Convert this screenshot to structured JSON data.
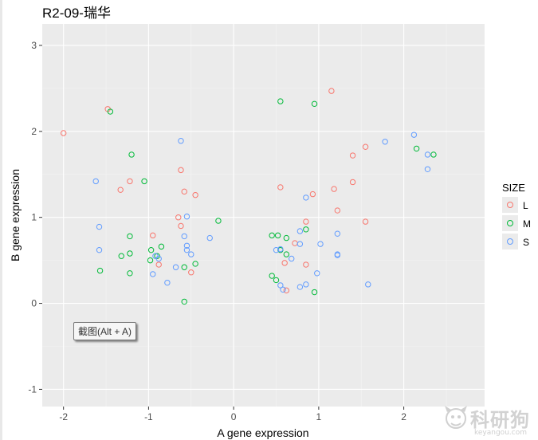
{
  "chart_data": {
    "type": "scatter",
    "title": "R2-09-瑞华",
    "xlabel": "A gene expression",
    "ylabel": "B gene expression",
    "xlim": [
      -2.25,
      2.95
    ],
    "ylim": [
      -1.2,
      3.25
    ],
    "xticks": [
      -2,
      -1,
      0,
      1,
      2
    ],
    "yticks": [
      -1,
      0,
      1,
      2,
      3
    ],
    "grid": true,
    "legend_title": "SIZE",
    "legend_position": "right",
    "series": [
      {
        "name": "L",
        "color": "#F8766D",
        "points": [
          [
            -2.0,
            1.98
          ],
          [
            -1.48,
            2.26
          ],
          [
            -1.33,
            1.32
          ],
          [
            -1.22,
            1.42
          ],
          [
            -0.95,
            0.79
          ],
          [
            -0.62,
            1.55
          ],
          [
            -0.58,
            1.3
          ],
          [
            -0.45,
            1.26
          ],
          [
            -0.65,
            1.0
          ],
          [
            -0.62,
            0.9
          ],
          [
            -0.88,
            0.45
          ],
          [
            -0.5,
            0.36
          ],
          [
            0.55,
            1.35
          ],
          [
            0.93,
            1.27
          ],
          [
            0.85,
            0.95
          ],
          [
            0.72,
            0.7
          ],
          [
            0.6,
            0.47
          ],
          [
            0.85,
            0.45
          ],
          [
            0.62,
            0.15
          ],
          [
            1.15,
            2.47
          ],
          [
            1.18,
            1.33
          ],
          [
            1.22,
            1.08
          ],
          [
            1.4,
            1.72
          ],
          [
            1.4,
            1.41
          ],
          [
            1.55,
            1.82
          ],
          [
            1.55,
            0.95
          ]
        ]
      },
      {
        "name": "M",
        "color": "#00BA38",
        "points": [
          [
            -1.45,
            2.23
          ],
          [
            -1.2,
            1.73
          ],
          [
            -1.05,
            1.42
          ],
          [
            -1.22,
            0.78
          ],
          [
            -1.22,
            0.58
          ],
          [
            -1.32,
            0.55
          ],
          [
            -1.22,
            0.35
          ],
          [
            -1.57,
            0.38
          ],
          [
            -0.97,
            0.62
          ],
          [
            -0.98,
            0.5
          ],
          [
            -0.9,
            0.55
          ],
          [
            -0.85,
            0.66
          ],
          [
            -0.58,
            0.42
          ],
          [
            -0.45,
            0.46
          ],
          [
            -0.18,
            0.96
          ],
          [
            -0.58,
            0.02
          ],
          [
            0.55,
            2.35
          ],
          [
            0.95,
            2.32
          ],
          [
            0.45,
            0.79
          ],
          [
            0.52,
            0.79
          ],
          [
            0.62,
            0.76
          ],
          [
            0.85,
            0.86
          ],
          [
            0.55,
            0.62
          ],
          [
            0.62,
            0.57
          ],
          [
            0.45,
            0.32
          ],
          [
            0.5,
            0.27
          ],
          [
            0.95,
            0.13
          ],
          [
            2.15,
            1.8
          ],
          [
            2.35,
            1.73
          ]
        ]
      },
      {
        "name": "S",
        "color": "#619CFF",
        "points": [
          [
            -1.62,
            1.42
          ],
          [
            -1.58,
            0.89
          ],
          [
            -1.58,
            0.62
          ],
          [
            -0.62,
            1.89
          ],
          [
            -0.55,
            1.01
          ],
          [
            -0.58,
            0.78
          ],
          [
            -0.55,
            0.67
          ],
          [
            -0.55,
            0.62
          ],
          [
            -0.5,
            0.57
          ],
          [
            -0.92,
            0.55
          ],
          [
            -0.88,
            0.52
          ],
          [
            -0.68,
            0.42
          ],
          [
            -0.95,
            0.34
          ],
          [
            -0.78,
            0.24
          ],
          [
            -0.28,
            0.76
          ],
          [
            0.5,
            0.62
          ],
          [
            0.55,
            0.63
          ],
          [
            0.78,
            0.84
          ],
          [
            0.78,
            0.69
          ],
          [
            1.02,
            0.69
          ],
          [
            0.68,
            0.52
          ],
          [
            0.55,
            0.21
          ],
          [
            0.58,
            0.16
          ],
          [
            0.78,
            0.19
          ],
          [
            0.85,
            0.22
          ],
          [
            0.98,
            0.35
          ],
          [
            0.85,
            1.23
          ],
          [
            1.22,
            0.81
          ],
          [
            1.22,
            0.57
          ],
          [
            1.22,
            0.56
          ],
          [
            1.58,
            0.22
          ],
          [
            1.78,
            1.88
          ],
          [
            2.12,
            1.96
          ],
          [
            2.28,
            1.73
          ],
          [
            2.28,
            1.56
          ]
        ]
      }
    ]
  },
  "overlay": {
    "tooltip": "截图(Alt + A)",
    "watermark_main": "科研狗",
    "watermark_sub": "keyangou.com"
  }
}
